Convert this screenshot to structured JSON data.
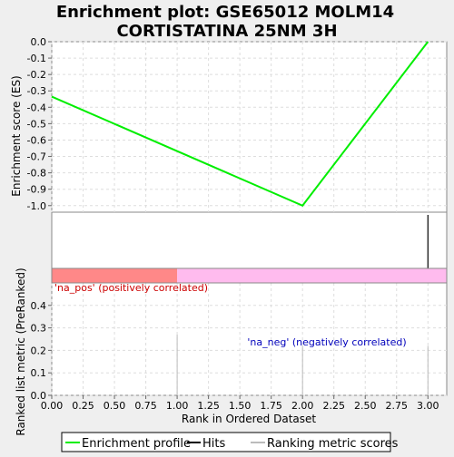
{
  "chart_data": {
    "type": "line",
    "title_line1": "Enrichment plot: GSE65012 MOLM14",
    "title_line2": "CORTISTATINA 25NM 3H",
    "xlabel": "Rank in Ordered Dataset",
    "es_ylabel": "Enrichment score (ES)",
    "metric_ylabel": "Ranked list metric (PreRanked)",
    "xlim": [
      0,
      3.15
    ],
    "es_ylim": [
      -1.04,
      0.0
    ],
    "metric_ylim": [
      0,
      0.5
    ],
    "x_ticks": [
      "0.00",
      "0.25",
      "0.50",
      "0.75",
      "1.00",
      "1.25",
      "1.50",
      "1.75",
      "2.00",
      "2.25",
      "2.50",
      "2.75",
      "3.00"
    ],
    "es_ticks": [
      "0.0",
      "-0.1",
      "-0.2",
      "-0.3",
      "-0.4",
      "-0.5",
      "-0.6",
      "-0.7",
      "-0.8",
      "-0.9",
      "-1.0"
    ],
    "metric_ticks": [
      "0.0",
      "0.1",
      "0.2",
      "0.3",
      "0.4"
    ],
    "enrichment_profile": {
      "name": "Enrichment profile",
      "color": "#00ee00",
      "points": [
        [
          0,
          -0.335
        ],
        [
          2,
          -1.0
        ],
        [
          3,
          0.0
        ]
      ]
    },
    "hits": [
      3
    ],
    "ranked_metric": [
      {
        "rank": 1,
        "value": 0.27
      },
      {
        "rank": 2,
        "value": 0.22
      },
      {
        "rank": 3,
        "value": 0.22
      }
    ],
    "pos_label": "'na_pos' (positively correlated)",
    "neg_label": "'na_neg' (negatively correlated)",
    "pos_color": "#ff8888",
    "neg_color": "#ffbbee",
    "pos_label_color": "#cc0000",
    "neg_label_color": "#0000bb",
    "pos_band_until": 1.0,
    "legend": [
      {
        "label": "Enrichment profile",
        "color": "#00ee00",
        "kind": "line"
      },
      {
        "label": "Hits",
        "color": "#000000",
        "kind": "vline"
      },
      {
        "label": "Ranking metric scores",
        "color": "#bbbbbb",
        "kind": "line"
      }
    ]
  }
}
